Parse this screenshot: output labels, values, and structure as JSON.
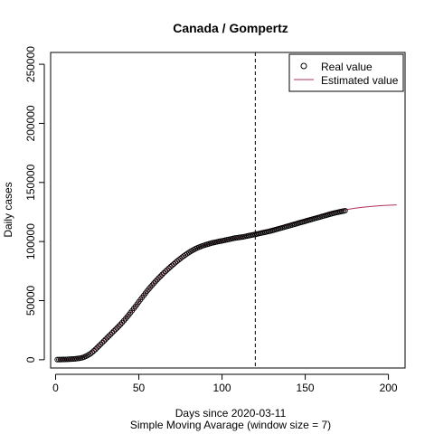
{
  "chart_data": {
    "type": "line",
    "title": "Canada / Gompertz",
    "xlabel": "Days since 2020-03-11",
    "xlabel2": "Simple Moving Avarage (window size = 7)",
    "ylabel": "Daily cases",
    "xlim": [
      -3,
      210
    ],
    "ylim": [
      -7000,
      260000
    ],
    "xticks": [
      0,
      50,
      100,
      150,
      200
    ],
    "yticks": [
      0,
      50000,
      100000,
      150000,
      200000,
      250000
    ],
    "vline_x": 120,
    "vline_style": "dashed",
    "legend_position": "top-right",
    "real_color": "#000000",
    "estimated_color": "#b03060",
    "series": [
      {
        "name": "Real value",
        "style": "points",
        "x": [
          1,
          2,
          3,
          4,
          5,
          6,
          7,
          8,
          9,
          10,
          11,
          12,
          13,
          14,
          15,
          16,
          17,
          18,
          19,
          20,
          21,
          22,
          23,
          24,
          25,
          26,
          27,
          28,
          29,
          30,
          31,
          32,
          33,
          34,
          35,
          36,
          37,
          38,
          39,
          40,
          41,
          42,
          43,
          44,
          45,
          46,
          47,
          48,
          49,
          50,
          51,
          52,
          53,
          54,
          55,
          56,
          57,
          58,
          59,
          60,
          61,
          62,
          63,
          64,
          65,
          66,
          67,
          68,
          69,
          70,
          71,
          72,
          73,
          74,
          75,
          76,
          77,
          78,
          79,
          80,
          81,
          82,
          83,
          84,
          85,
          86,
          87,
          88,
          89,
          90,
          91,
          92,
          93,
          94,
          95,
          96,
          97,
          98,
          99,
          100,
          101,
          102,
          103,
          104,
          105,
          106,
          107,
          108,
          109,
          110,
          111,
          112,
          113,
          114,
          115,
          116,
          117,
          118,
          119,
          120,
          121,
          122,
          123,
          124,
          125,
          126,
          127,
          128,
          129,
          130,
          131,
          132,
          133,
          134,
          135,
          136,
          137,
          138,
          139,
          140,
          141,
          142,
          143,
          144,
          145,
          146,
          147,
          148,
          149,
          150,
          151,
          152,
          153,
          154,
          155,
          156,
          157,
          158,
          159,
          160,
          161,
          162,
          163,
          164,
          165,
          166,
          167,
          168,
          169,
          170,
          171,
          172,
          173,
          174
        ],
        "y": [
          100,
          120,
          150,
          180,
          220,
          270,
          330,
          400,
          480,
          570,
          680,
          800,
          950,
          1150,
          1400,
          1750,
          2200,
          2800,
          3500,
          4300,
          5200,
          6300,
          7500,
          8800,
          10200,
          11600,
          13000,
          14400,
          15800,
          17200,
          18600,
          20000,
          21400,
          22800,
          24200,
          25600,
          27000,
          28400,
          29900,
          31400,
          33000,
          34600,
          36300,
          38000,
          39800,
          41600,
          43400,
          45200,
          47000,
          48900,
          50800,
          52700,
          54500,
          56300,
          58100,
          59800,
          61500,
          63100,
          64700,
          66200,
          67700,
          69200,
          70600,
          72000,
          73400,
          74700,
          76000,
          77300,
          78600,
          79800,
          81000,
          82200,
          83400,
          84500,
          85600,
          86700,
          87700,
          88700,
          89700,
          90600,
          91500,
          92300,
          93100,
          93800,
          94500,
          95100,
          95700,
          96200,
          96700,
          97200,
          97600,
          98000,
          98400,
          98800,
          99100,
          99400,
          99700,
          100000,
          100300,
          100600,
          100900,
          101200,
          101500,
          101800,
          102100,
          102400,
          102700,
          103000,
          103200,
          103400,
          103600,
          103800,
          104000,
          104300,
          104600,
          104900,
          105200,
          105500,
          105800,
          106100,
          106400,
          106700,
          107000,
          107300,
          107600,
          107900,
          108200,
          108500,
          108800,
          109200,
          109600,
          110000,
          110400,
          110800,
          111200,
          111600,
          112000,
          112400,
          112800,
          113200,
          113600,
          114000,
          114400,
          114800,
          115200,
          115600,
          116000,
          116400,
          116800,
          117200,
          117600,
          118000,
          118400,
          118800,
          119200,
          119600,
          120000,
          120400,
          120800,
          121200,
          121600,
          122000,
          122400,
          122800,
          123200,
          123600,
          124000,
          124300,
          124600,
          124900,
          125200,
          125500,
          125800,
          126100
        ]
      },
      {
        "name": "Estimated value",
        "style": "line",
        "x": [
          1,
          5,
          10,
          15,
          20,
          25,
          30,
          35,
          40,
          45,
          50,
          55,
          60,
          65,
          70,
          75,
          80,
          85,
          90,
          95,
          100,
          105,
          110,
          115,
          120,
          125,
          130,
          135,
          140,
          145,
          150,
          155,
          160,
          165,
          170,
          175,
          180,
          185,
          190,
          195,
          200,
          205
        ],
        "y": [
          100,
          220,
          570,
          1400,
          4300,
          10200,
          17200,
          24200,
          31400,
          39800,
          48900,
          58100,
          66200,
          73400,
          79800,
          85600,
          90600,
          94500,
          97200,
          99100,
          100600,
          102100,
          103400,
          105200,
          106700,
          108500,
          110400,
          112400,
          114400,
          116400,
          118400,
          120400,
          122400,
          124300,
          125800,
          127100,
          128200,
          129100,
          129800,
          130300,
          130700,
          131000
        ]
      }
    ]
  }
}
